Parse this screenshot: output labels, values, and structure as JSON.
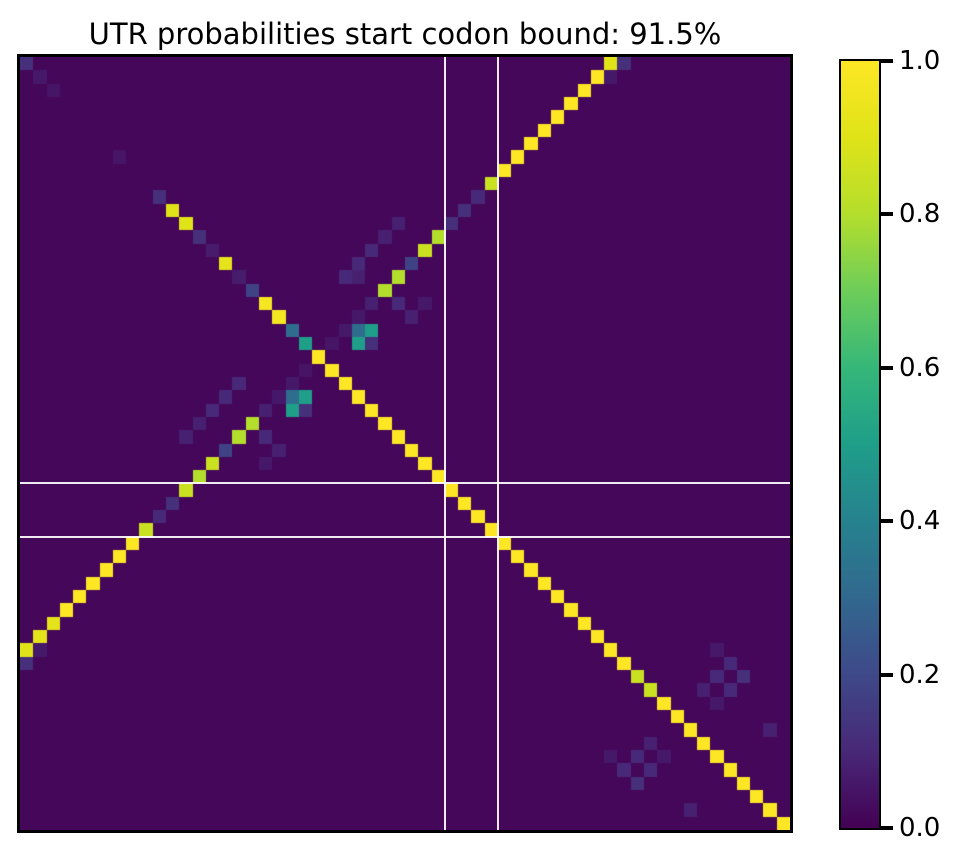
{
  "chart_data": {
    "type": "heatmap",
    "title": "UTR probabilities start codon bound: 91.5%",
    "grid_size": 58,
    "value_range": [
      0.0,
      1.0
    ],
    "colormap": "viridis",
    "colormap_stops": [
      "#440154",
      "#482878",
      "#3e4989",
      "#31688e",
      "#26828e",
      "#1f9e89",
      "#35b779",
      "#6dcd59",
      "#b4de2c",
      "#dfe318",
      "#fde725"
    ],
    "background_value": 0.015,
    "cells_format": "row, col, value",
    "cells": [
      [
        0,
        0,
        0.12
      ],
      [
        1,
        1,
        0.06
      ],
      [
        2,
        2,
        0.05
      ],
      [
        7,
        7,
        0.05
      ],
      [
        10,
        10,
        0.12
      ],
      [
        11,
        11,
        0.9
      ],
      [
        12,
        12,
        0.9
      ],
      [
        13,
        13,
        0.12
      ],
      [
        14,
        14,
        0.07
      ],
      [
        15,
        15,
        0.92
      ],
      [
        16,
        16,
        0.07
      ],
      [
        17,
        17,
        0.18
      ],
      [
        18,
        18,
        0.97
      ],
      [
        19,
        19,
        0.97
      ],
      [
        20,
        20,
        0.32
      ],
      [
        21,
        21,
        0.5
      ],
      [
        22,
        22,
        1
      ],
      [
        23,
        23,
        1
      ],
      [
        24,
        24,
        1
      ],
      [
        25,
        25,
        1
      ],
      [
        26,
        26,
        1
      ],
      [
        27,
        27,
        1
      ],
      [
        28,
        28,
        1
      ],
      [
        29,
        29,
        1
      ],
      [
        30,
        30,
        1
      ],
      [
        31,
        31,
        1
      ],
      [
        32,
        32,
        1
      ],
      [
        33,
        33,
        1
      ],
      [
        34,
        34,
        1
      ],
      [
        35,
        35,
        1
      ],
      [
        36,
        36,
        1
      ],
      [
        37,
        37,
        1
      ],
      [
        38,
        38,
        1
      ],
      [
        39,
        39,
        1
      ],
      [
        40,
        40,
        1
      ],
      [
        41,
        41,
        1
      ],
      [
        42,
        42,
        1
      ],
      [
        43,
        43,
        1
      ],
      [
        44,
        44,
        1
      ],
      [
        45,
        45,
        1
      ],
      [
        46,
        46,
        0.85
      ],
      [
        47,
        47,
        0.85
      ],
      [
        48,
        48,
        1
      ],
      [
        49,
        49,
        1
      ],
      [
        50,
        50,
        1
      ],
      [
        51,
        51,
        1
      ],
      [
        52,
        52,
        1
      ],
      [
        53,
        53,
        1
      ],
      [
        54,
        54,
        1
      ],
      [
        55,
        55,
        1
      ],
      [
        56,
        56,
        1
      ],
      [
        57,
        57,
        1
      ],
      [
        0,
        44,
        0.9
      ],
      [
        1,
        43,
        1
      ],
      [
        2,
        42,
        1
      ],
      [
        3,
        41,
        1
      ],
      [
        4,
        40,
        1
      ],
      [
        5,
        39,
        1
      ],
      [
        6,
        38,
        1
      ],
      [
        7,
        37,
        1
      ],
      [
        8,
        36,
        1
      ],
      [
        9,
        35,
        0.85
      ],
      [
        10,
        34,
        0.1
      ],
      [
        11,
        33,
        0.12
      ],
      [
        12,
        32,
        0.12
      ],
      [
        13,
        31,
        0.8
      ],
      [
        14,
        30,
        0.85
      ],
      [
        15,
        29,
        0.18
      ],
      [
        16,
        28,
        0.8
      ],
      [
        17,
        27,
        0.8
      ],
      [
        18,
        26,
        0.08
      ],
      [
        19,
        25,
        0.06
      ],
      [
        20,
        24,
        0.06
      ],
      [
        21,
        23,
        0.05
      ],
      [
        23,
        21,
        0.05
      ],
      [
        24,
        20,
        0.06
      ],
      [
        25,
        19,
        0.06
      ],
      [
        26,
        18,
        0.08
      ],
      [
        27,
        17,
        0.8
      ],
      [
        28,
        16,
        0.8
      ],
      [
        29,
        15,
        0.18
      ],
      [
        30,
        14,
        0.85
      ],
      [
        31,
        13,
        0.8
      ],
      [
        32,
        12,
        0.85
      ],
      [
        33,
        11,
        0.12
      ],
      [
        34,
        10,
        0.1
      ],
      [
        35,
        9,
        0.85
      ],
      [
        36,
        8,
        1
      ],
      [
        37,
        7,
        1
      ],
      [
        38,
        6,
        1
      ],
      [
        39,
        5,
        1
      ],
      [
        40,
        4,
        1
      ],
      [
        41,
        3,
        1
      ],
      [
        42,
        2,
        0.92
      ],
      [
        43,
        1,
        0.92
      ],
      [
        44,
        0,
        0.9
      ],
      [
        20,
        25,
        0.32
      ],
      [
        20,
        26,
        0.5
      ],
      [
        21,
        25,
        0.5
      ],
      [
        21,
        26,
        0.12
      ],
      [
        25,
        20,
        0.32
      ],
      [
        25,
        21,
        0.5
      ],
      [
        26,
        20,
        0.5
      ],
      [
        26,
        21,
        0.12
      ],
      [
        24,
        16,
        0.1
      ],
      [
        25,
        15,
        0.1
      ],
      [
        26,
        14,
        0.1
      ],
      [
        27,
        13,
        0.08
      ],
      [
        28,
        12,
        0.08
      ],
      [
        16,
        24,
        0.1
      ],
      [
        15,
        25,
        0.1
      ],
      [
        14,
        26,
        0.1
      ],
      [
        13,
        27,
        0.08
      ],
      [
        12,
        28,
        0.08
      ],
      [
        16,
        25,
        0.08
      ],
      [
        18,
        28,
        0.1
      ],
      [
        19,
        29,
        0.08
      ],
      [
        18,
        30,
        0.06
      ],
      [
        28,
        18,
        0.1
      ],
      [
        29,
        19,
        0.08
      ],
      [
        30,
        18,
        0.06
      ],
      [
        0,
        45,
        0.12
      ],
      [
        1,
        44,
        0.06
      ],
      [
        45,
        0,
        0.12
      ],
      [
        44,
        1,
        0.06
      ],
      [
        44,
        52,
        0.06
      ],
      [
        45,
        53,
        0.1
      ],
      [
        46,
        52,
        0.1
      ],
      [
        46,
        54,
        0.12
      ],
      [
        47,
        51,
        0.08
      ],
      [
        47,
        53,
        0.1
      ],
      [
        48,
        52,
        0.06
      ],
      [
        52,
        44,
        0.06
      ],
      [
        53,
        45,
        0.1
      ],
      [
        52,
        46,
        0.1
      ],
      [
        54,
        46,
        0.12
      ],
      [
        51,
        47,
        0.08
      ],
      [
        53,
        47,
        0.1
      ],
      [
        52,
        48,
        0.06
      ],
      [
        50,
        56,
        0.08
      ],
      [
        56,
        50,
        0.08
      ]
    ],
    "guide_lines": {
      "color": "#ffffff",
      "column_boundaries": [
        32,
        36
      ],
      "row_boundaries": [
        32,
        36
      ]
    },
    "colorbar": {
      "min": 0.0,
      "max": 1.0,
      "ticks": [
        1.0,
        0.8,
        0.6,
        0.4,
        0.2,
        0.0
      ],
      "tick_labels": [
        "1.0",
        "0.8",
        "0.6",
        "0.4",
        "0.2",
        "0.0"
      ]
    }
  }
}
